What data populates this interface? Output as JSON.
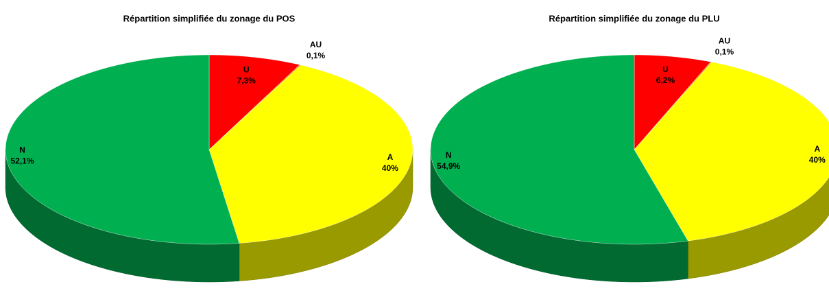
{
  "chart_data": [
    {
      "type": "pie",
      "title": "Répartition simplifiée du zonage du POS",
      "categories": [
        "U",
        "AU",
        "A",
        "N"
      ],
      "values": [
        7.3,
        0.1,
        40,
        52.1
      ],
      "value_labels": [
        "7,3%",
        "0,1%",
        "40%",
        "52,1%"
      ],
      "colors": [
        "#ff0000",
        "#ff9900",
        "#ffff00",
        "#00b050"
      ]
    },
    {
      "type": "pie",
      "title": "Répartition simplifiée du zonage du PLU",
      "categories": [
        "U",
        "AU",
        "A",
        "N"
      ],
      "values": [
        6.2,
        0.1,
        40,
        54.9
      ],
      "value_labels": [
        "6,2%",
        "0,1%",
        "40%",
        "54,9%"
      ],
      "colors": [
        "#ff0000",
        "#ff9900",
        "#ffff00",
        "#00b050"
      ]
    }
  ]
}
